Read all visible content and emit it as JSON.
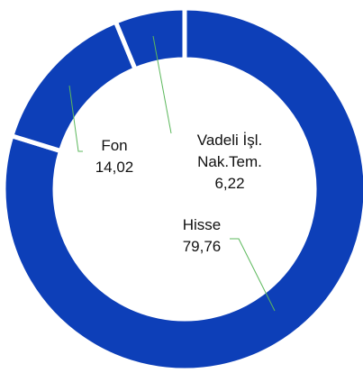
{
  "chart_data": {
    "type": "donut",
    "categories": [
      "Hisse",
      "Fon",
      "Vadeli İşl. Nak.Tem."
    ],
    "values": [
      79.76,
      14.02,
      6.22
    ],
    "value_labels": [
      "79,76",
      "14,02",
      "6,22"
    ],
    "color": "#0d3fb8"
  }
}
